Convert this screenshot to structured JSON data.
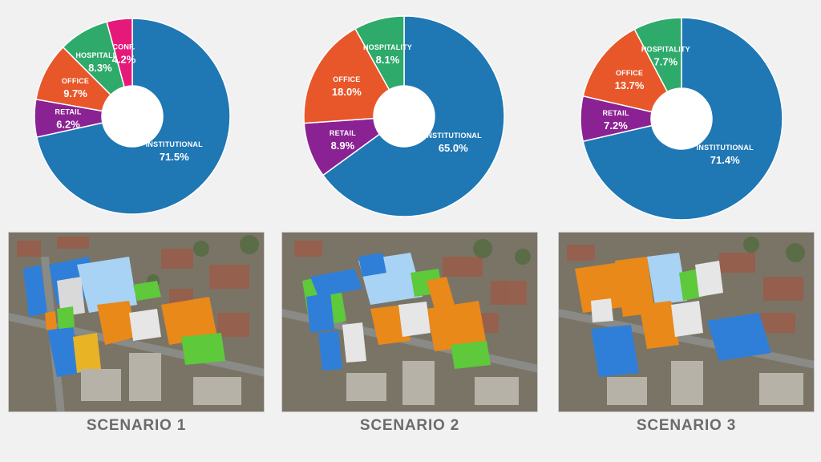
{
  "colors": {
    "institutional": "#1f77b4",
    "retail": "#8b2293",
    "office": "#e8572a",
    "hospitality": "#2eaa6b",
    "conf": "#e5197a"
  },
  "chart_data": [
    {
      "type": "pie",
      "style": "donut",
      "title": "SCENARIO 1",
      "slices": [
        {
          "key": "institutional",
          "label": "INSTITUTIONAL",
          "value": 71.5,
          "display": "71.5%"
        },
        {
          "key": "retail",
          "label": "RETAIL",
          "value": 6.2,
          "display": "6.2%"
        },
        {
          "key": "office",
          "label": "OFFICE",
          "value": 9.7,
          "display": "9.7%"
        },
        {
          "key": "hospitality",
          "label": "HOSPITALITY",
          "value": 8.3,
          "display": "8.3%"
        },
        {
          "key": "conf",
          "label": "CONF.",
          "value": 4.2,
          "display": "4.2%"
        }
      ]
    },
    {
      "type": "pie",
      "style": "donut",
      "title": "SCENARIO 2",
      "slices": [
        {
          "key": "institutional",
          "label": "INSTITUTIONAL",
          "value": 65.0,
          "display": "65.0%"
        },
        {
          "key": "retail",
          "label": "RETAIL",
          "value": 8.9,
          "display": "8.9%"
        },
        {
          "key": "office",
          "label": "OFFICE",
          "value": 18.0,
          "display": "18.0%"
        },
        {
          "key": "hospitality",
          "label": "HOSPITALITY",
          "value": 8.1,
          "display": "8.1%"
        }
      ]
    },
    {
      "type": "pie",
      "style": "donut",
      "title": "SCENARIO 3",
      "slices": [
        {
          "key": "institutional",
          "label": "INSTITUTIONAL",
          "value": 71.4,
          "display": "71.4%"
        },
        {
          "key": "retail",
          "label": "RETAIL",
          "value": 7.2,
          "display": "7.2%"
        },
        {
          "key": "office",
          "label": "OFFICE",
          "value": 13.7,
          "display": "13.7%"
        },
        {
          "key": "hospitality",
          "label": "HOSPITALITY",
          "value": 7.7,
          "display": "7.7%"
        }
      ]
    }
  ],
  "scenarios": [
    {
      "caption": "SCENARIO 1"
    },
    {
      "caption": "SCENARIO 2"
    },
    {
      "caption": "SCENARIO 3"
    }
  ]
}
